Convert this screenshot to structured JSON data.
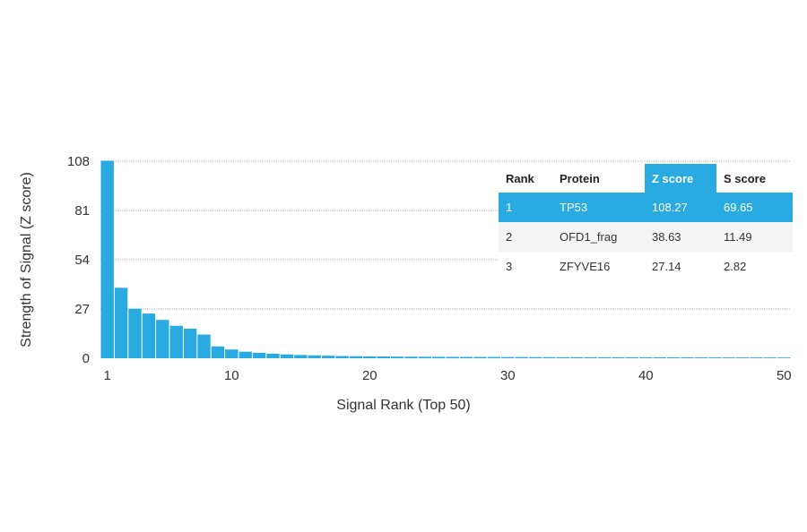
{
  "chart_data": {
    "type": "bar",
    "xlabel": "Signal Rank (Top 50)",
    "ylabel": "Strength of Signal (Z score)",
    "ylim": [
      0,
      108
    ],
    "yticks": [
      0,
      27,
      54,
      81,
      108
    ],
    "xticks": [
      1,
      10,
      20,
      30,
      40,
      50
    ],
    "grid": "horizontal dotted",
    "bar_color": "#29abe2",
    "x": [
      1,
      2,
      3,
      4,
      5,
      6,
      7,
      8,
      9,
      10,
      11,
      12,
      13,
      14,
      15,
      16,
      17,
      18,
      19,
      20,
      21,
      22,
      23,
      24,
      25,
      26,
      27,
      28,
      29,
      30,
      31,
      32,
      33,
      34,
      35,
      36,
      37,
      38,
      39,
      40,
      41,
      42,
      43,
      44,
      45,
      46,
      47,
      48,
      49,
      50
    ],
    "values": [
      108.27,
      38.63,
      27.14,
      24.5,
      21.0,
      17.8,
      16.2,
      13.0,
      6.5,
      4.8,
      3.6,
      3.0,
      2.5,
      2.1,
      1.8,
      1.6,
      1.4,
      1.2,
      1.1,
      1.0,
      0.95,
      0.9,
      0.85,
      0.8,
      0.78,
      0.75,
      0.72,
      0.7,
      0.68,
      0.66,
      0.64,
      0.62,
      0.6,
      0.58,
      0.56,
      0.55,
      0.54,
      0.53,
      0.52,
      0.51,
      0.5,
      0.49,
      0.48,
      0.47,
      0.46,
      0.45,
      0.44,
      0.43,
      0.42,
      0.41
    ]
  },
  "table": {
    "headers": [
      "Rank",
      "Protein",
      "Z score",
      "S score"
    ],
    "rows": [
      [
        "1",
        "TP53",
        "108.27",
        "69.65"
      ],
      [
        "2",
        "OFD1_frag",
        "38.63",
        "11.49"
      ],
      [
        "3",
        "ZFYVE16",
        "27.14",
        "2.82"
      ]
    ]
  }
}
